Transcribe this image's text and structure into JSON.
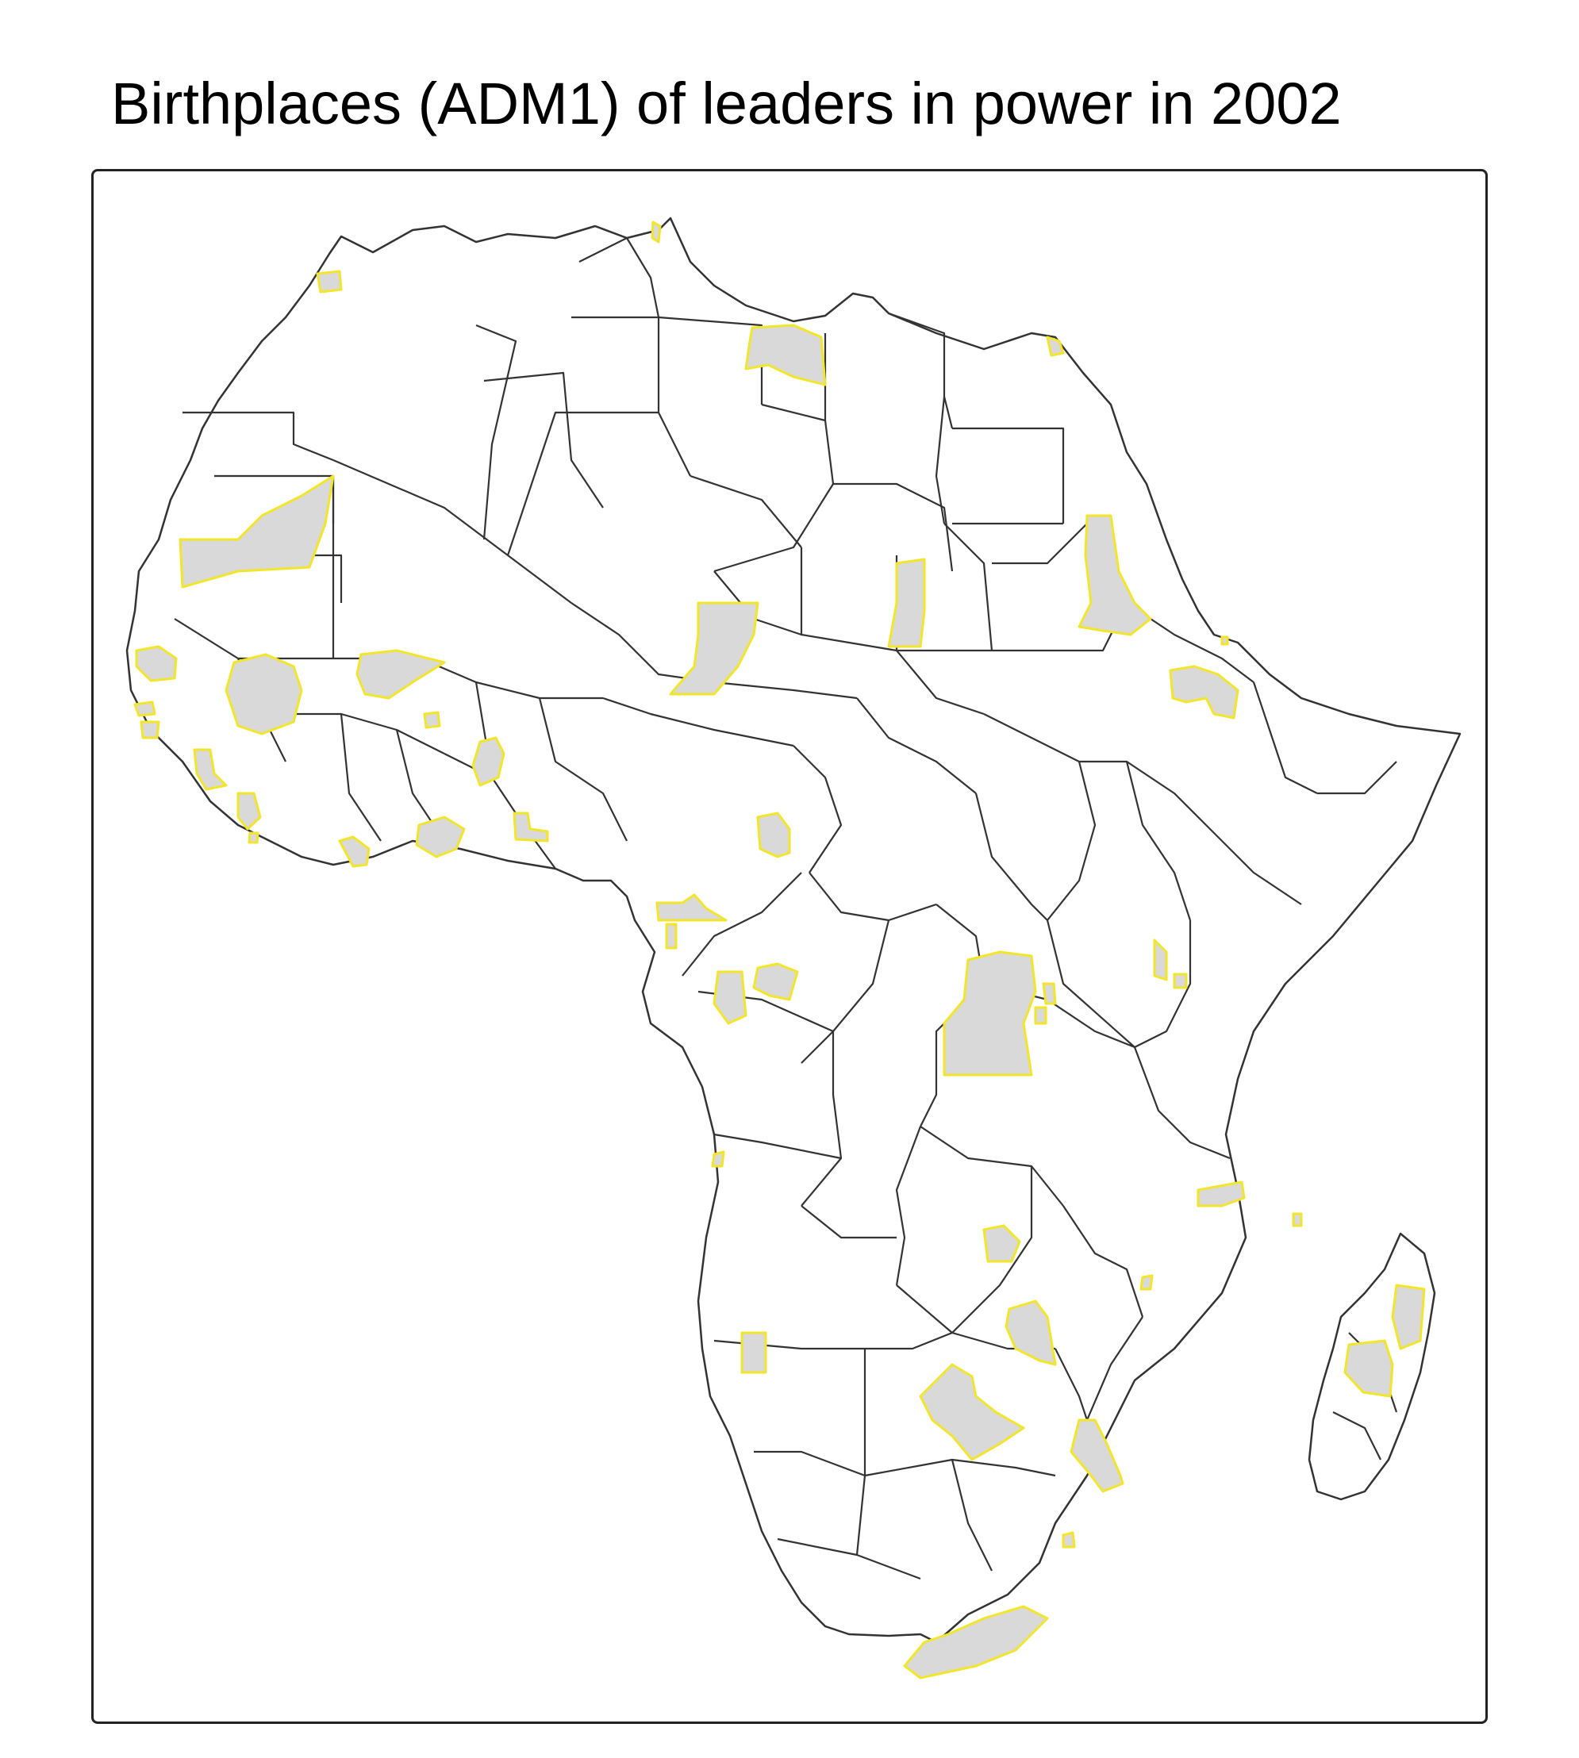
{
  "title": "Birthplaces (ADM1) of leaders in power in 2002",
  "colors": {
    "background": "#ffffff",
    "border": "#333333",
    "highlight_fill": "#d9d9d9",
    "highlight_stroke": "#f2e52a"
  },
  "legend": null
}
